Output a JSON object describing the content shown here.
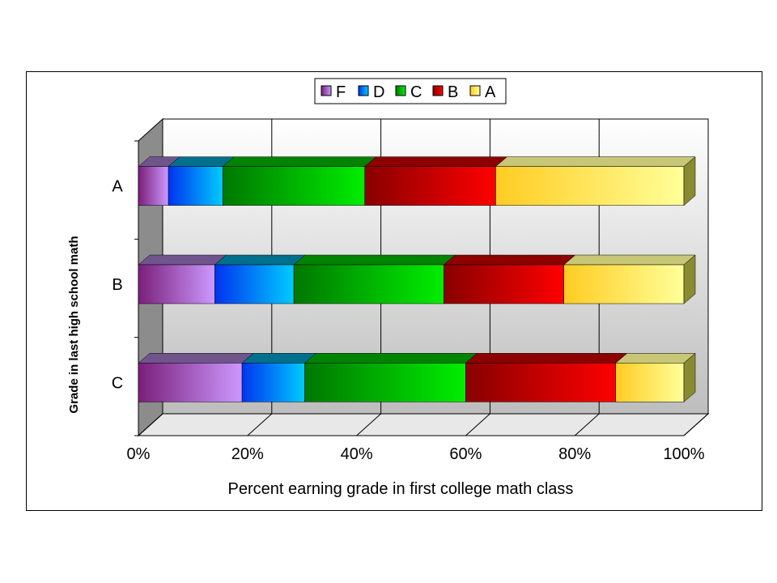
{
  "chart_data": {
    "type": "bar",
    "orientation": "horizontal",
    "stacked": "percent",
    "style": "3d",
    "categories": [
      "A",
      "B",
      "C"
    ],
    "series": [
      {
        "name": "F",
        "values": [
          5.5,
          14,
          19
        ],
        "color": "#cc99ff"
      },
      {
        "name": "D",
        "values": [
          10,
          14.5,
          11.5
        ],
        "color": "#00ccff"
      },
      {
        "name": "C",
        "values": [
          26,
          27.5,
          29.5
        ],
        "color": "#00ee00"
      },
      {
        "name": "B",
        "values": [
          24,
          22,
          27.5
        ],
        "color": "#ff0000"
      },
      {
        "name": "A",
        "values": [
          34.5,
          22,
          12.5
        ],
        "color": "#ffff99"
      }
    ],
    "x_ticks": [
      "0%",
      "20%",
      "40%",
      "60%",
      "80%",
      "100%"
    ],
    "xlim": [
      0,
      100
    ],
    "xlabel": "Percent earning grade in first college math class",
    "ylabel": "Grade in last high school math",
    "legend_position": "top",
    "grid": true
  }
}
